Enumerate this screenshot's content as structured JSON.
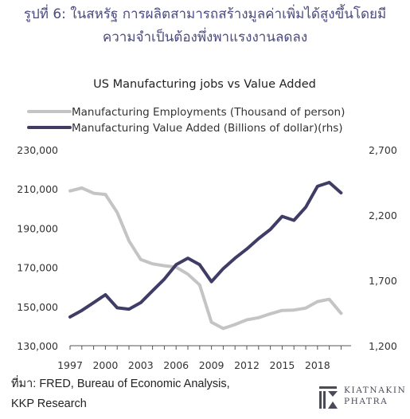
{
  "header": {
    "line1": "รูปที่ 6: ในสหรัฐ การผลิตสามารถสร้างมูลค่าเพิ่มได้สูงขึ้นโดยมี",
    "line2": "ความจำเป็นต้องพึ่งพาแรงงานลดลง"
  },
  "footer": {
    "source_line1": "ที่มา: FRED, Bureau of Economic Analysis,",
    "source_line2": "KKP Research"
  },
  "logo": {
    "line1": "KIATNAKIN",
    "line2": "PHATRA"
  },
  "colors": {
    "employment": "#c4c4c4",
    "value_added": "#3f3d66",
    "header": "#4b4a7d"
  },
  "chart_data": {
    "type": "line",
    "title": "US Manufacturing jobs vs Value Added",
    "x": [
      1997,
      1998,
      1999,
      2000,
      2001,
      2002,
      2003,
      2004,
      2005,
      2006,
      2007,
      2008,
      2009,
      2010,
      2011,
      2012,
      2013,
      2014,
      2015,
      2016,
      2017,
      2018,
      2019,
      2020
    ],
    "x_ticks": [
      "1997",
      "2000",
      "2003",
      "2006",
      "2009",
      "2012",
      "2015",
      "2018"
    ],
    "y_left": {
      "ticks": [
        "230,000",
        "210,000",
        "190,000",
        "170,000",
        "150,000",
        "130,000"
      ],
      "range": [
        130000,
        230000
      ]
    },
    "y_right": {
      "ticks": [
        "2,700",
        "2,200",
        "1,700",
        "1,200"
      ],
      "range": [
        1200,
        2700
      ]
    },
    "series": [
      {
        "name": "Manufacturing Employments (Thousand of person)",
        "axis": "left",
        "values": [
          209000,
          210500,
          207800,
          207200,
          198000,
          183500,
          174000,
          171800,
          170800,
          170100,
          166500,
          161000,
          142000,
          138800,
          140800,
          143200,
          144300,
          146300,
          148000,
          148200,
          149200,
          152500,
          153700,
          146500
        ]
      },
      {
        "name": "Manufacturing Value Added (Billions of dollar)(rhs)",
        "axis": "right",
        "values": [
          1420,
          1470,
          1530,
          1590,
          1490,
          1480,
          1530,
          1620,
          1710,
          1820,
          1870,
          1820,
          1690,
          1790,
          1870,
          1940,
          2020,
          2090,
          2190,
          2160,
          2260,
          2420,
          2450,
          2370
        ]
      }
    ]
  }
}
